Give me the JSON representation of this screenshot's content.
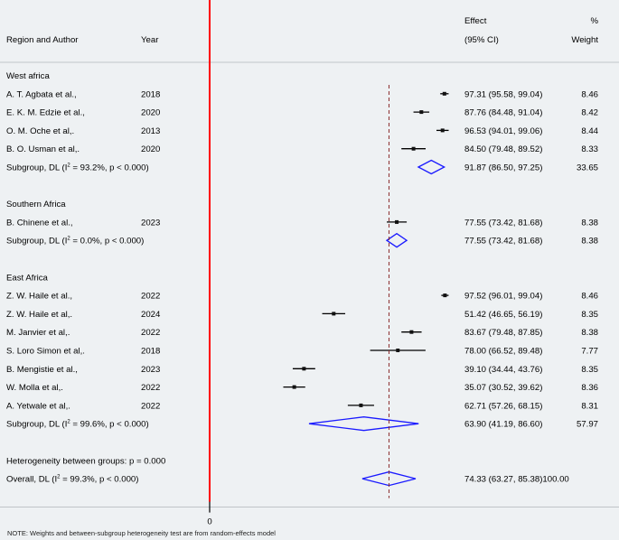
{
  "header": {
    "region_author": "Region and Author",
    "year": "Year",
    "effect": "Effect",
    "ci": "(95% CI)",
    "pct": "%",
    "weight": "Weight"
  },
  "axis_tick": "0",
  "note": "NOTE: Weights and between-subgroup heterogeneity test are from random-effects model",
  "colors": {
    "background": "#eef1f3",
    "null_line": "#ff0000",
    "diamond": "#1a1aff",
    "overall_line": "#8b2d2d",
    "text": "#000000"
  },
  "chart_data": {
    "type": "forest",
    "xlim": [
      0,
      100
    ],
    "null_line": 0,
    "overall_effect": 74.33,
    "groups": [
      {
        "name": "West africa",
        "studies": [
          {
            "author": "A. T. Agbata et al.,",
            "year": "2018",
            "effect": 97.31,
            "lo": 95.58,
            "hi": 99.04,
            "ci_text": "97.31 (95.58, 99.04)",
            "weight": 8.46,
            "weight_text": "8.46"
          },
          {
            "author": "E. K. M. Edzie et al.,",
            "year": "2020",
            "effect": 87.76,
            "lo": 84.48,
            "hi": 91.04,
            "ci_text": "87.76 (84.48, 91.04)",
            "weight": 8.42,
            "weight_text": "8.42"
          },
          {
            "author": "O. M. Oche et al,.",
            "year": "2013",
            "effect": 96.53,
            "lo": 94.01,
            "hi": 99.06,
            "ci_text": "96.53 (94.01, 99.06)",
            "weight": 8.44,
            "weight_text": "8.44"
          },
          {
            "author": "B. O. Usman et al,.",
            "year": "2020",
            "effect": 84.5,
            "lo": 79.48,
            "hi": 89.52,
            "ci_text": "84.50 (79.48, 89.52)",
            "weight": 8.33,
            "weight_text": "8.33"
          }
        ],
        "subgroup": {
          "label_pre": "Subgroup, DL (I",
          "label_sup": "2",
          "label_post": " = 93.2%, p < 0.000)",
          "effect": 91.87,
          "lo": 86.5,
          "hi": 97.25,
          "ci_text": "91.87 (86.50, 97.25)",
          "weight_text": "33.65"
        }
      },
      {
        "name": "Southern Africa",
        "studies": [
          {
            "author": "B. Chinene et al.,",
            "year": "2023",
            "effect": 77.55,
            "lo": 73.42,
            "hi": 81.68,
            "ci_text": "77.55 (73.42, 81.68)",
            "weight": 8.38,
            "weight_text": "8.38"
          }
        ],
        "subgroup": {
          "label_pre": "Subgroup, DL (I",
          "label_sup": "2",
          "label_post": " = 0.0%, p < 0.000)",
          "effect": 77.55,
          "lo": 73.42,
          "hi": 81.68,
          "ci_text": "77.55 (73.42, 81.68)",
          "weight_text": "8.38"
        }
      },
      {
        "name": "East Africa",
        "studies": [
          {
            "author": "Z. W. Haile et al.,",
            "year": "2022",
            "effect": 97.52,
            "lo": 96.01,
            "hi": 99.04,
            "ci_text": "97.52 (96.01, 99.04)",
            "weight": 8.46,
            "weight_text": "8.46"
          },
          {
            "author": "Z. W. Haile et al,.",
            "year": "2024",
            "effect": 51.42,
            "lo": 46.65,
            "hi": 56.19,
            "ci_text": "51.42 (46.65, 56.19)",
            "weight": 8.35,
            "weight_text": "8.35"
          },
          {
            "author": "M. Janvier et al,.",
            "year": "2022",
            "effect": 83.67,
            "lo": 79.48,
            "hi": 87.85,
            "ci_text": "83.67 (79.48, 87.85)",
            "weight": 8.38,
            "weight_text": "8.38"
          },
          {
            "author": "S. Loro Simon et al,.",
            "year": "2018",
            "effect": 78.0,
            "lo": 66.52,
            "hi": 89.48,
            "ci_text": "78.00 (66.52, 89.48)",
            "weight": 7.77,
            "weight_text": "7.77"
          },
          {
            "author": "B. Mengistie et al.,",
            "year": "2023",
            "effect": 39.1,
            "lo": 34.44,
            "hi": 43.76,
            "ci_text": "39.10 (34.44, 43.76)",
            "weight": 8.35,
            "weight_text": "8.35"
          },
          {
            "author": "W. Molla et al,.",
            "year": "2022",
            "effect": 35.07,
            "lo": 30.52,
            "hi": 39.62,
            "ci_text": "35.07 (30.52, 39.62)",
            "weight": 8.36,
            "weight_text": "8.36"
          },
          {
            "author": "A. Yetwale et al,.",
            "year": "2022",
            "effect": 62.71,
            "lo": 57.26,
            "hi": 68.15,
            "ci_text": "62.71 (57.26, 68.15)",
            "weight": 8.31,
            "weight_text": "8.31"
          }
        ],
        "subgroup": {
          "label_pre": "Subgroup, DL (I",
          "label_sup": "2",
          "label_post": " = 99.6%, p < 0.000)",
          "effect": 63.9,
          "lo": 41.19,
          "hi": 86.6,
          "ci_text": "63.90 (41.19, 86.60)",
          "weight_text": "57.97"
        }
      }
    ],
    "heterogeneity": "Heterogeneity between groups: p = 0.000",
    "overall": {
      "label_pre": "Overall, DL (I",
      "label_sup": "2",
      "label_post": " = 99.3%, p < 0.000)",
      "effect": 74.33,
      "lo": 63.27,
      "hi": 85.38,
      "ci_text": "74.33 (63.27, 85.38)100.00"
    }
  }
}
